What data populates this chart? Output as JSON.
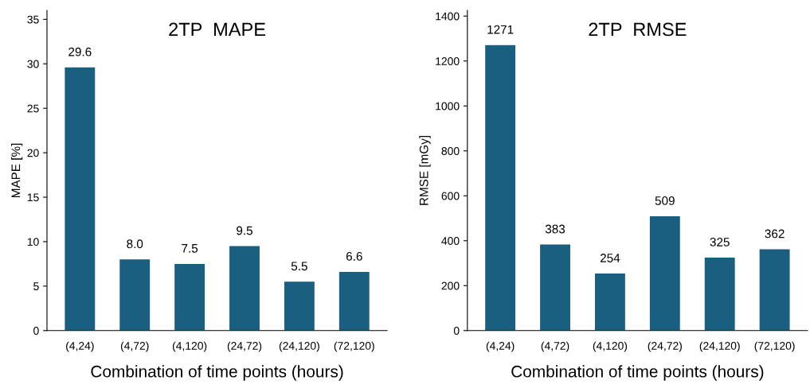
{
  "chart_data": [
    {
      "type": "bar",
      "title": "2TP  MAPE",
      "xlabel": "Combination of time points (hours)",
      "ylabel": "MAPE [%]",
      "categories": [
        "(4,24)",
        "(4,72)",
        "(4,120)",
        "(24,72)",
        "(24,120)",
        "(72,120)"
      ],
      "values": [
        29.6,
        8.0,
        7.5,
        9.5,
        5.5,
        6.6
      ],
      "value_labels": [
        "29.6",
        "8.0",
        "7.5",
        "9.5",
        "5.5",
        "6.6"
      ],
      "color": "#1a5f80",
      "ylim": [
        0,
        36
      ],
      "yticks": [
        0,
        5,
        10,
        15,
        20,
        25,
        30,
        35
      ],
      "grid": false,
      "legend": false
    },
    {
      "type": "bar",
      "title": "2TP  RMSE",
      "xlabel": "Combination of time points (hours)",
      "ylabel": "RMSE [mGy]",
      "categories": [
        "(4,24)",
        "(4,72)",
        "(4,120)",
        "(24,72)",
        "(24,120)",
        "(72,120)"
      ],
      "values": [
        1271,
        383,
        254,
        509,
        325,
        362
      ],
      "data_labels": true,
      "color": "#1a5f80",
      "ylim": [
        0,
        1425
      ],
      "yticks": [
        0,
        200,
        400,
        600,
        800,
        1000,
        1200,
        1400
      ],
      "grid": false,
      "legend": false
    }
  ]
}
